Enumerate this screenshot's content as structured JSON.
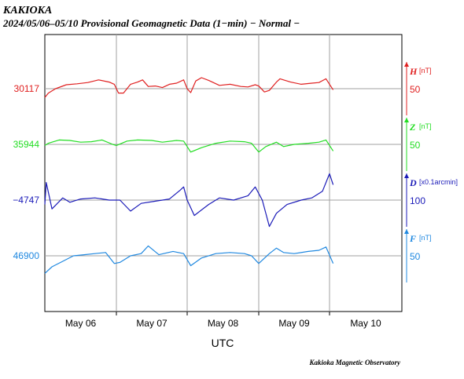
{
  "header": {
    "station": "KAKIOKA",
    "subtitle": "2024/05/06–05/10  Provisional Geomagnetic Data (1−min)  − Normal −"
  },
  "footer": {
    "credit": "Kakioka Magnetic Observatory"
  },
  "chart_data": {
    "type": "line",
    "title": "KAKIOKA",
    "xlabel": "UTC",
    "x_ticks": [
      "May 06",
      "May 07",
      "May 08",
      "May 09",
      "May 10"
    ],
    "x_range_days": [
      0,
      5
    ],
    "grid": true,
    "series": [
      {
        "name": "H",
        "unit": "[nT]",
        "color": "#e02020",
        "baseline_label": "30117",
        "scale_label": "50",
        "x": [
          0,
          0.05,
          0.15,
          0.3,
          0.45,
          0.6,
          0.75,
          0.9,
          0.97,
          1.03,
          1.1,
          1.2,
          1.3,
          1.37,
          1.45,
          1.55,
          1.65,
          1.75,
          1.85,
          1.95,
          2.0,
          2.05,
          2.12,
          2.2,
          2.3,
          2.45,
          2.6,
          2.75,
          2.85,
          2.95,
          3.0,
          3.08,
          3.15,
          3.25,
          3.3,
          3.45,
          3.6,
          3.75,
          3.85,
          3.95,
          4.0,
          4.05
        ],
        "y": [
          -40,
          -20,
          0,
          18,
          22,
          28,
          40,
          30,
          20,
          -20,
          -20,
          20,
          30,
          40,
          10,
          12,
          5,
          20,
          25,
          40,
          0,
          -18,
          35,
          50,
          38,
          15,
          20,
          10,
          8,
          18,
          12,
          -15,
          -8,
          30,
          45,
          30,
          20,
          25,
          28,
          45,
          20,
          -5
        ]
      },
      {
        "name": "Z",
        "unit": "[nT]",
        "color": "#22dd22",
        "baseline_label": "35944",
        "scale_label": "50",
        "x": [
          0,
          0.05,
          0.2,
          0.35,
          0.5,
          0.65,
          0.8,
          0.95,
          1.0,
          1.15,
          1.3,
          1.5,
          1.65,
          1.85,
          1.95,
          2.05,
          2.2,
          2.4,
          2.6,
          2.8,
          2.9,
          3.0,
          3.1,
          3.25,
          3.35,
          3.5,
          3.7,
          3.85,
          3.95,
          4.05
        ],
        "y": [
          -5,
          5,
          20,
          18,
          10,
          12,
          20,
          0,
          -5,
          15,
          20,
          18,
          10,
          18,
          15,
          -35,
          -15,
          5,
          15,
          12,
          5,
          -35,
          -10,
          10,
          -10,
          0,
          5,
          10,
          20,
          -30
        ]
      },
      {
        "name": "D",
        "unit": "[x0.1arcmin]",
        "color": "#1a1ab8",
        "baseline_label": "−4747",
        "scale_label": "100",
        "x": [
          0,
          0.02,
          0.1,
          0.25,
          0.35,
          0.5,
          0.7,
          0.9,
          1.05,
          1.2,
          1.35,
          1.55,
          1.75,
          1.9,
          1.95,
          2.0,
          2.1,
          2.3,
          2.45,
          2.65,
          2.85,
          2.95,
          3.05,
          3.15,
          3.25,
          3.4,
          3.6,
          3.75,
          3.9,
          4.0,
          4.05
        ],
        "y": [
          -20,
          80,
          -40,
          10,
          -10,
          5,
          10,
          0,
          0,
          -50,
          -15,
          -5,
          5,
          45,
          60,
          0,
          -70,
          -20,
          10,
          0,
          20,
          60,
          0,
          -120,
          -60,
          -20,
          0,
          10,
          40,
          120,
          70
        ]
      },
      {
        "name": "F",
        "unit": "[nT]",
        "color": "#1f88e0",
        "baseline_label": "46900",
        "scale_label": "50",
        "x": [
          0,
          0.1,
          0.25,
          0.4,
          0.55,
          0.7,
          0.85,
          0.97,
          1.05,
          1.2,
          1.35,
          1.45,
          1.6,
          1.8,
          1.95,
          2.05,
          2.2,
          2.4,
          2.6,
          2.8,
          2.9,
          3.0,
          3.05,
          3.15,
          3.25,
          3.35,
          3.5,
          3.7,
          3.85,
          3.95,
          4.05
        ],
        "y": [
          -80,
          -50,
          -25,
          0,
          5,
          10,
          15,
          -35,
          -30,
          0,
          10,
          45,
          5,
          20,
          10,
          -45,
          -10,
          10,
          15,
          10,
          0,
          -35,
          -20,
          10,
          35,
          15,
          10,
          20,
          25,
          40,
          -35
        ]
      }
    ]
  }
}
